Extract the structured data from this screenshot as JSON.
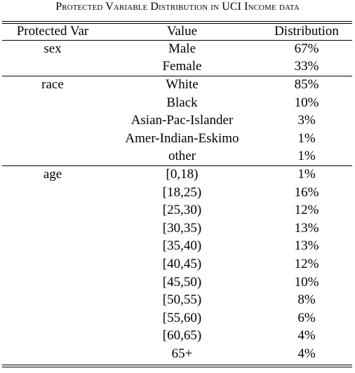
{
  "caption": "Protected Variable Distribution in UCI Income data",
  "headers": {
    "protected_var": "Protected Var",
    "value": "Value",
    "distribution": "Distribution"
  },
  "groups": [
    {
      "name": "sex",
      "rows": [
        {
          "value": "Male",
          "dist": "67%"
        },
        {
          "value": "Female",
          "dist": "33%"
        }
      ]
    },
    {
      "name": "race",
      "rows": [
        {
          "value": "White",
          "dist": "85%"
        },
        {
          "value": "Black",
          "dist": "10%"
        },
        {
          "value": "Asian-Pac-Islander",
          "dist": "3%"
        },
        {
          "value": "Amer-Indian-Eskimo",
          "dist": "1%"
        },
        {
          "value": "other",
          "dist": "1%"
        }
      ]
    },
    {
      "name": "age",
      "rows": [
        {
          "value": "[0,18)",
          "dist": "1%"
        },
        {
          "value": "[18,25)",
          "dist": "16%"
        },
        {
          "value": "[25,30)",
          "dist": "12%"
        },
        {
          "value": "[30,35)",
          "dist": "13%"
        },
        {
          "value": "[35,40)",
          "dist": "13%"
        },
        {
          "value": "[40,45)",
          "dist": "12%"
        },
        {
          "value": "[45,50)",
          "dist": "10%"
        },
        {
          "value": "[50,55)",
          "dist": "8%"
        },
        {
          "value": "[55,60)",
          "dist": "6%"
        },
        {
          "value": "[60,65)",
          "dist": "4%"
        },
        {
          "value": "65+",
          "dist": "4%"
        }
      ]
    }
  ]
}
